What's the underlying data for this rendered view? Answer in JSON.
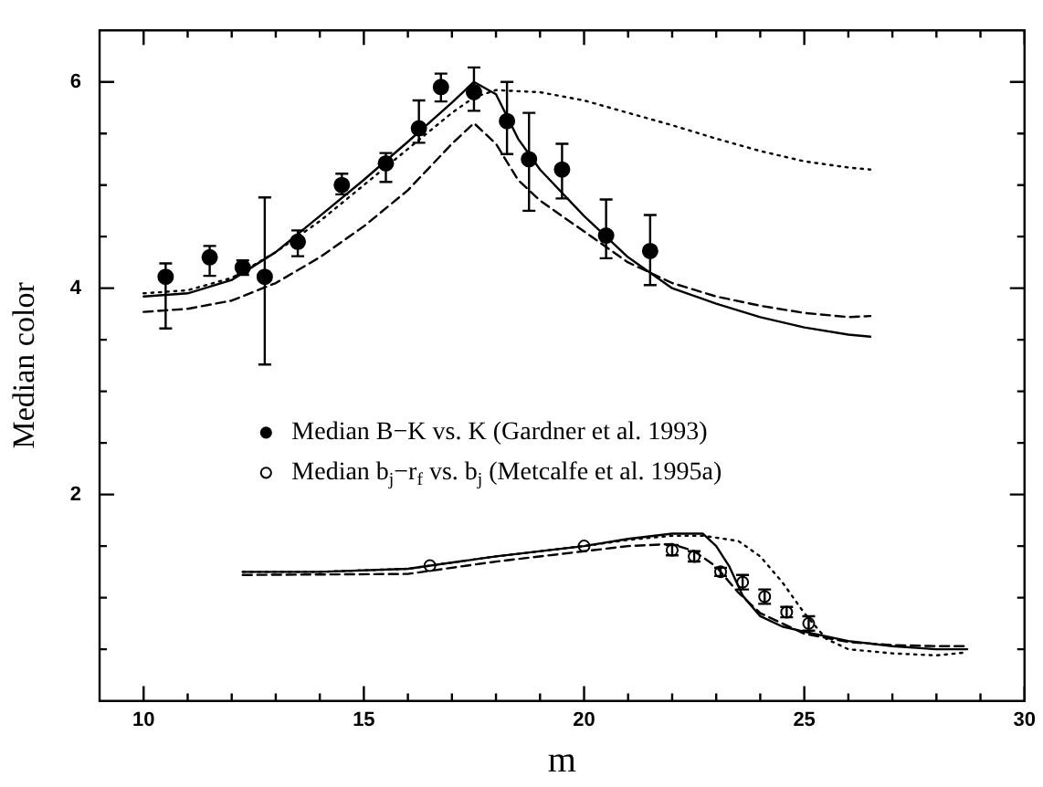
{
  "chart_data": {
    "type": "line",
    "xlabel": "m",
    "ylabel": "Median color",
    "xlim": [
      9,
      30
    ],
    "ylim": [
      0,
      6.5
    ],
    "xticks": [
      10,
      {
        "value": 11,
        "label": null
      },
      {
        "value": 12,
        "label": null
      },
      {
        "value": 13,
        "label": null
      },
      {
        "value": 14,
        "label": null
      },
      15,
      {
        "value": 16,
        "label": null
      },
      {
        "value": 17,
        "label": null
      },
      {
        "value": 18,
        "label": null
      },
      {
        "value": 19,
        "label": null
      },
      20,
      {
        "value": 21,
        "label": null
      },
      {
        "value": 22,
        "label": null
      },
      {
        "value": 23,
        "label": null
      },
      {
        "value": 24,
        "label": null
      },
      25,
      {
        "value": 26,
        "label": null
      },
      {
        "value": 27,
        "label": null
      },
      {
        "value": 28,
        "label": null
      },
      {
        "value": 29,
        "label": null
      },
      30
    ],
    "yticks": [
      {
        "value": 0.5,
        "label": null
      },
      {
        "value": 1,
        "label": null
      },
      {
        "value": 1.5,
        "label": null
      },
      2,
      {
        "value": 2.5,
        "label": null
      },
      {
        "value": 3,
        "label": null
      },
      {
        "value": 3.5,
        "label": null
      },
      4,
      {
        "value": 4.5,
        "label": null
      },
      {
        "value": 5,
        "label": null
      },
      {
        "value": 5.5,
        "label": null
      },
      6
    ],
    "grid": false,
    "legend": "center left",
    "series": [
      {
        "color": "#000000",
        "line_style": "solid",
        "marker": "none",
        "x": [
          10,
          11,
          12,
          13,
          14,
          15,
          16,
          17,
          17.5,
          18,
          18.5,
          19,
          20,
          21,
          22,
          23,
          24,
          25,
          26,
          26.5
        ],
        "values": [
          3.92,
          3.95,
          4.08,
          4.35,
          4.7,
          5.05,
          5.42,
          5.8,
          6.0,
          5.88,
          5.45,
          5.15,
          4.7,
          4.3,
          4.0,
          3.85,
          3.72,
          3.62,
          3.55,
          3.53
        ]
      },
      {
        "color": "#000000",
        "line_style": "dashed",
        "marker": "none",
        "x": [
          10,
          11,
          12,
          13,
          14,
          15,
          16,
          17,
          17.5,
          18,
          18.5,
          19,
          20,
          21,
          22,
          23,
          24,
          25,
          26,
          26.5
        ],
        "values": [
          3.77,
          3.8,
          3.88,
          4.05,
          4.3,
          4.6,
          4.95,
          5.4,
          5.6,
          5.4,
          5.05,
          4.85,
          4.55,
          4.25,
          4.05,
          3.92,
          3.83,
          3.76,
          3.72,
          3.73
        ]
      },
      {
        "color": "#000000",
        "line_style": "dotted",
        "marker": "none",
        "x": [
          10,
          11,
          12,
          13,
          14,
          15,
          16,
          17,
          17.5,
          18,
          19,
          20,
          21,
          22,
          23,
          24,
          25,
          26,
          26.5
        ],
        "values": [
          3.95,
          3.98,
          4.1,
          4.35,
          4.65,
          5.0,
          5.35,
          5.7,
          5.85,
          5.92,
          5.9,
          5.82,
          5.7,
          5.58,
          5.45,
          5.33,
          5.23,
          5.17,
          5.15
        ]
      },
      {
        "color": "#000000",
        "line_style": "solid",
        "marker": "none",
        "x": [
          12.25,
          14,
          16,
          18,
          20,
          21,
          22,
          22.7,
          23,
          23.3,
          23.6,
          24,
          24.5,
          25,
          26,
          27,
          28,
          28.7
        ],
        "values": [
          1.25,
          1.25,
          1.28,
          1.4,
          1.5,
          1.57,
          1.62,
          1.62,
          1.5,
          1.3,
          1.02,
          0.82,
          0.72,
          0.67,
          0.58,
          0.53,
          0.5,
          0.5
        ]
      },
      {
        "color": "#000000",
        "line_style": "dashed",
        "marker": "none",
        "x": [
          12.25,
          16,
          18,
          20,
          21,
          22,
          22.5,
          23,
          23.5,
          24,
          25,
          26,
          27,
          28,
          28.7
        ],
        "values": [
          1.22,
          1.23,
          1.35,
          1.45,
          1.5,
          1.52,
          1.45,
          1.3,
          1.05,
          0.85,
          0.65,
          0.57,
          0.54,
          0.53,
          0.53
        ]
      },
      {
        "color": "#000000",
        "line_style": "dotted",
        "marker": "none",
        "x": [
          12.25,
          14,
          16,
          18,
          20,
          21,
          22,
          22.7,
          23.5,
          24,
          24.5,
          25,
          25.5,
          26,
          27,
          28,
          28.7
        ],
        "values": [
          1.25,
          1.25,
          1.28,
          1.4,
          1.5,
          1.56,
          1.6,
          1.6,
          1.55,
          1.4,
          1.15,
          0.85,
          0.6,
          0.5,
          0.46,
          0.44,
          0.47
        ]
      },
      {
        "type": "scatter",
        "name": "Median B−K vs. K (Gardner et al. 1993)",
        "color": "#000000",
        "marker": "circle",
        "x": [
          10.5,
          11.5,
          12.25,
          12.75,
          13.5,
          14.5,
          15.5,
          16.25,
          16.75,
          17.5,
          18.25,
          18.75,
          19.5,
          20.5,
          21.5
        ],
        "values": [
          4.11,
          4.3,
          4.2,
          4.11,
          4.45,
          5.0,
          5.21,
          5.55,
          5.95,
          5.9,
          5.62,
          5.25,
          5.15,
          4.51,
          4.36
        ],
        "errors": [
          [
            3.61,
            4.24
          ],
          [
            4.12,
            4.41
          ],
          [
            4.13,
            4.27
          ],
          [
            3.26,
            4.88
          ],
          [
            4.31,
            4.56
          ],
          [
            4.91,
            5.11
          ],
          [
            5.03,
            5.31
          ],
          [
            5.41,
            5.82
          ],
          [
            5.81,
            6.08
          ],
          [
            5.72,
            6.14
          ],
          [
            5.3,
            6.0
          ],
          [
            4.75,
            5.7
          ],
          [
            4.87,
            5.4
          ],
          [
            4.29,
            4.86
          ],
          [
            4.03,
            4.71
          ]
        ]
      },
      {
        "type": "scatter",
        "name": "Median b$_{j}$−r$_{f}$ vs. b$_{j}$ (Metcalfe et al. 1995a)",
        "color": "#000000",
        "marker": "circle",
        "x": [
          16.5,
          20,
          22,
          22.5,
          23.1,
          23.6,
          24.1,
          24.6,
          25.1
        ],
        "values": [
          1.31,
          1.5,
          1.46,
          1.4,
          1.25,
          1.15,
          1.01,
          0.86,
          0.75
        ],
        "errors": [
          null,
          null,
          0.05,
          0.05,
          0.04,
          0.07,
          0.07,
          0.05,
          0.07
        ]
      }
    ]
  }
}
